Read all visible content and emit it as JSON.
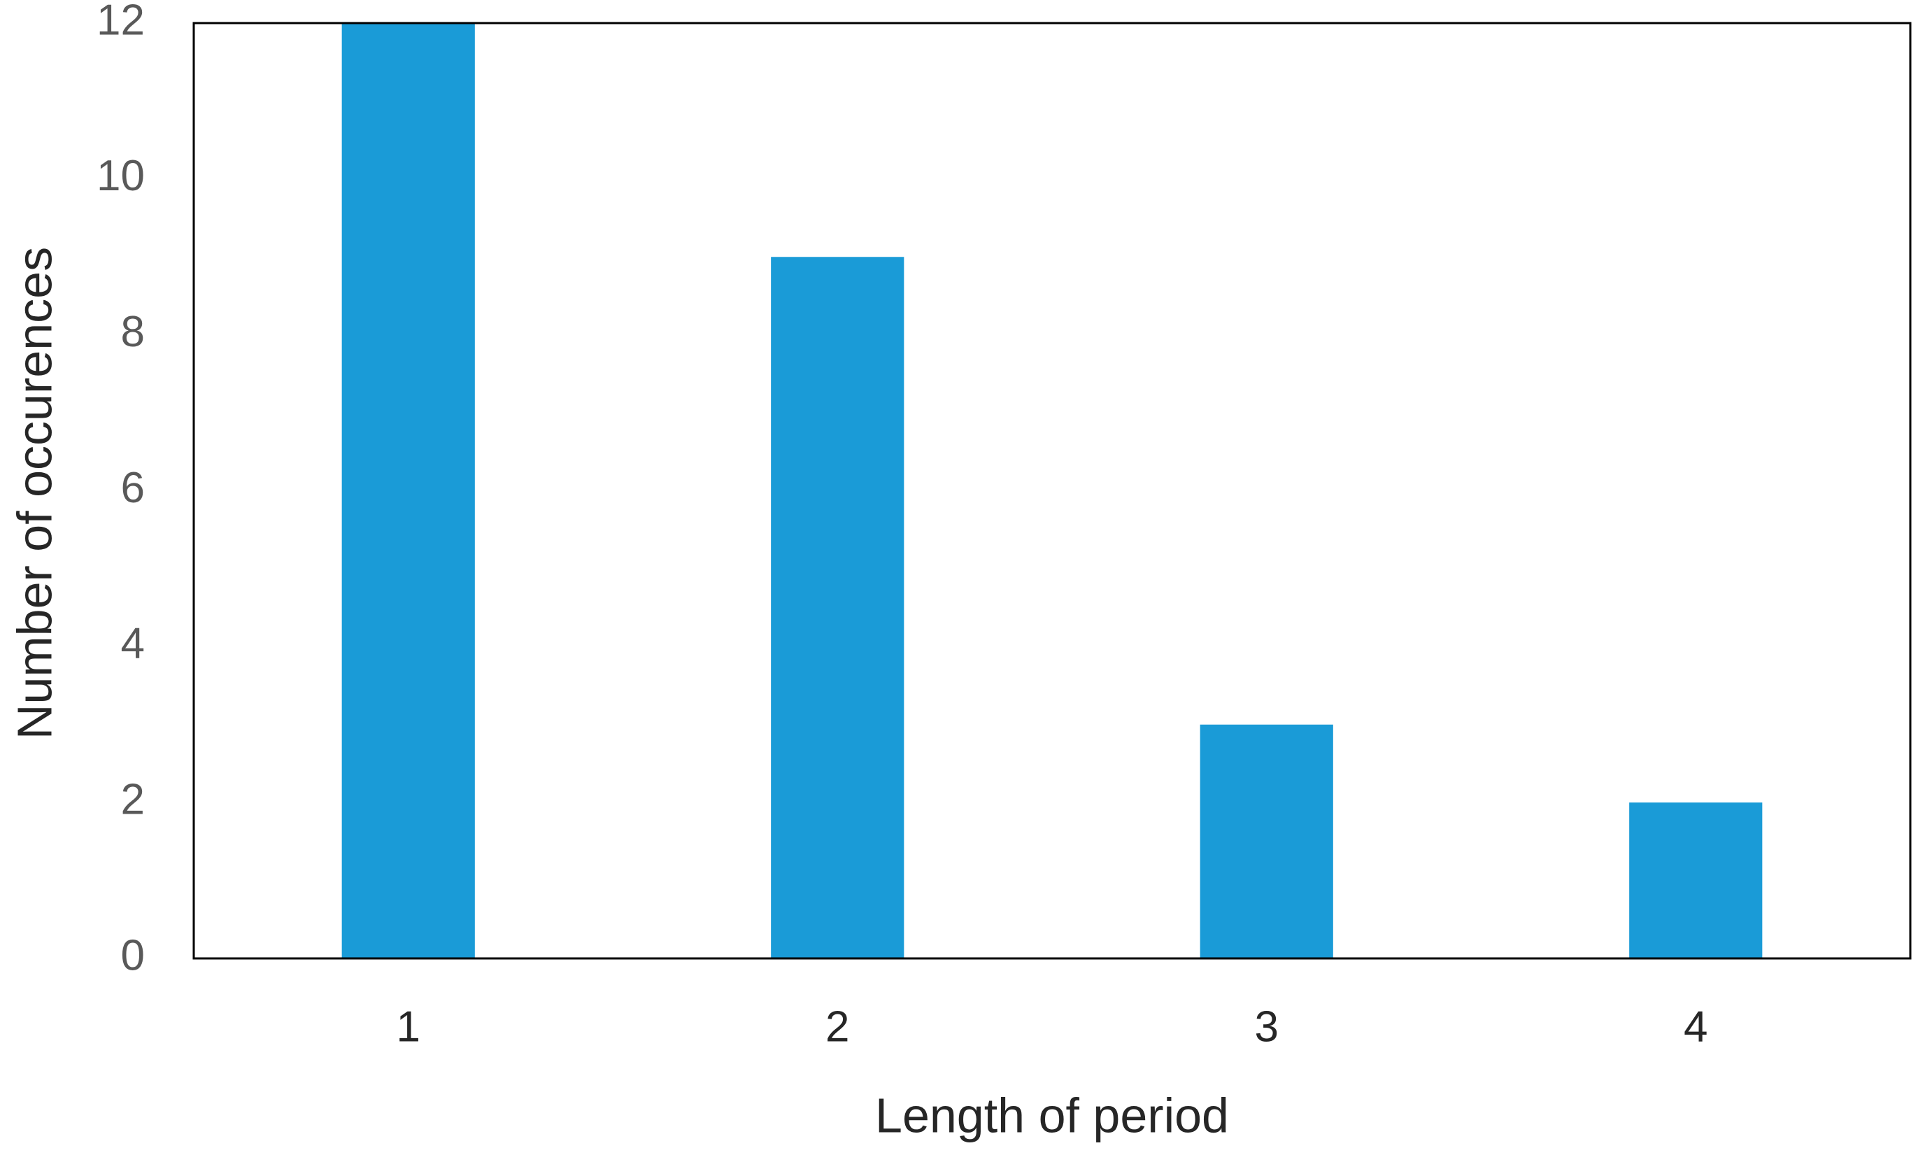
{
  "chart_data": {
    "type": "bar",
    "x_label": "Length of period",
    "y_label": "Number of occurences",
    "categories": [
      "1",
      "2",
      "3",
      "4"
    ],
    "values": [
      12,
      9,
      3,
      2
    ],
    "color": "#1a9bd7",
    "ylim": [
      0,
      12
    ],
    "yticks": [
      0,
      2,
      4,
      6,
      8,
      10,
      12
    ],
    "grid": false
  }
}
